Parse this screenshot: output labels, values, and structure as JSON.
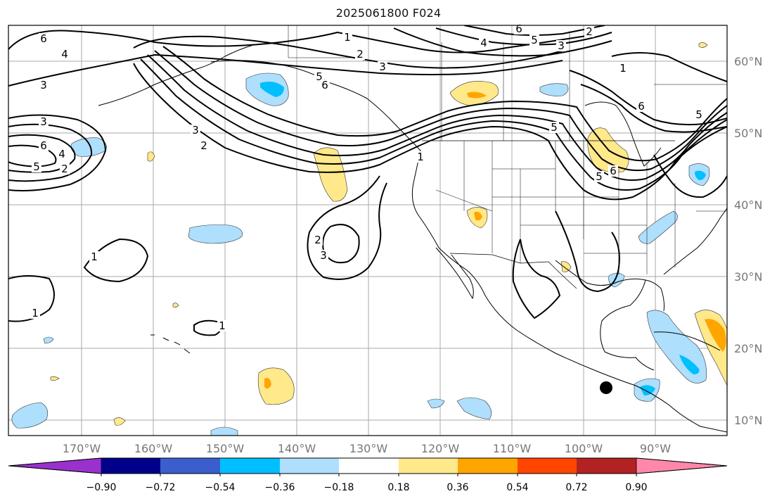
{
  "title": "2025061800 F024",
  "map": {
    "x_tick_labels": [
      "170°W",
      "160°W",
      "150°W",
      "140°W",
      "130°W",
      "120°W",
      "110°W",
      "100°W",
      "90°W"
    ],
    "y_tick_labels": [
      "60°N",
      "50°N",
      "40°N",
      "30°N",
      "20°N",
      "10°N"
    ],
    "marker": "black dot near 97°W, 15°N"
  },
  "colorbar": {
    "tick_labels": [
      "−0.90",
      "−0.72",
      "−0.54",
      "−0.36",
      "−0.18",
      "0.18",
      "0.36",
      "0.54",
      "0.72",
      "0.90"
    ],
    "colors": [
      "#9932cc",
      "#00008b",
      "#3a5fcd",
      "#00bfff",
      "#aedffd",
      "#ffffff",
      "#ffe98a",
      "#ffa500",
      "#ff4500",
      "#b22222",
      "#ff88aa"
    ]
  },
  "contour_labels": [
    "1",
    "2",
    "3",
    "4",
    "5",
    "6"
  ],
  "fill_colors": {
    "light_blue": "#aedffd",
    "mid_blue": "#00bfff",
    "light_yellow": "#ffe98a",
    "orange": "#ffa500"
  }
}
